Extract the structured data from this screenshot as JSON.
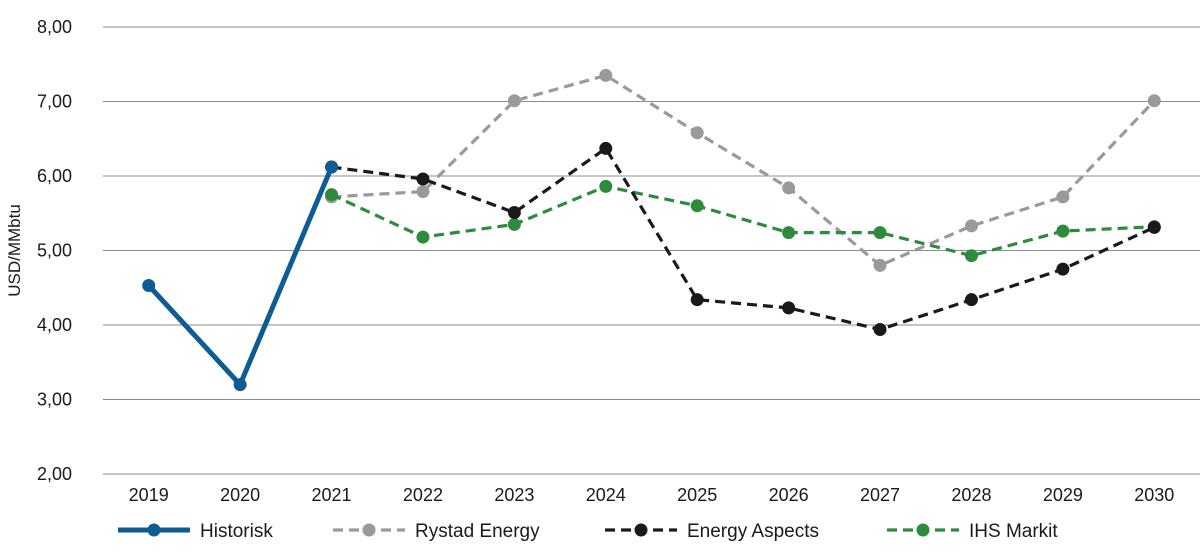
{
  "chart_data": {
    "type": "line",
    "ylabel": "USD/MMbtu",
    "xlabel": "",
    "title": "",
    "ylim": [
      2,
      8
    ],
    "yticks": [
      "2,00",
      "3,00",
      "4,00",
      "5,00",
      "6,00",
      "7,00",
      "8,00"
    ],
    "categories": [
      "2019",
      "2020",
      "2021",
      "2022",
      "2023",
      "2024",
      "2025",
      "2026",
      "2027",
      "2028",
      "2029",
      "2030"
    ],
    "grid": "horizontal",
    "legend_position": "bottom",
    "series": [
      {
        "name": "Historisk",
        "style": "solid",
        "color": "#0f5b94",
        "values": [
          4.53,
          3.2,
          6.12,
          null,
          null,
          null,
          null,
          null,
          null,
          null,
          null,
          null
        ]
      },
      {
        "name": "Rystad Energy",
        "style": "dashed",
        "color": "#9a9a9a",
        "values": [
          null,
          null,
          5.72,
          5.79,
          7.01,
          7.35,
          6.58,
          5.84,
          4.8,
          5.33,
          5.72,
          7.01
        ]
      },
      {
        "name": "Energy Aspects",
        "style": "dashed",
        "color": "#1a1a1a",
        "values": [
          null,
          null,
          6.12,
          5.96,
          5.51,
          6.37,
          4.34,
          4.23,
          3.94,
          4.34,
          4.75,
          5.31
        ]
      },
      {
        "name": "IHS Markit",
        "style": "dashed",
        "color": "#2e8b3e",
        "values": [
          null,
          null,
          5.75,
          5.18,
          5.35,
          5.86,
          5.6,
          5.24,
          5.24,
          4.93,
          5.26,
          5.32
        ]
      }
    ]
  }
}
